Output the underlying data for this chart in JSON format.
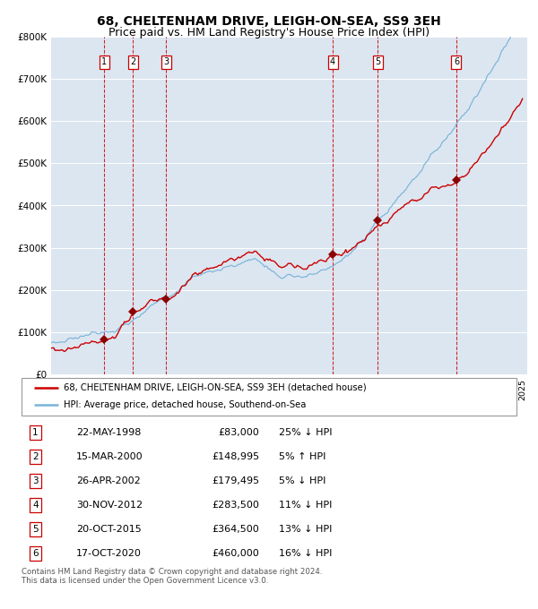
{
  "title": "68, CHELTENHAM DRIVE, LEIGH-ON-SEA, SS9 3EH",
  "subtitle": "Price paid vs. HM Land Registry's House Price Index (HPI)",
  "ylim": [
    0,
    800000
  ],
  "yticks": [
    0,
    100000,
    200000,
    300000,
    400000,
    500000,
    600000,
    700000,
    800000
  ],
  "ytick_labels": [
    "£0",
    "£100K",
    "£200K",
    "£300K",
    "£400K",
    "£500K",
    "£600K",
    "£700K",
    "£800K"
  ],
  "background_color": "#dce6f1",
  "hpi_color": "#7ab4d8",
  "price_color": "#cc0000",
  "sale_marker_color": "#8b0000",
  "vline_color": "#cc0000",
  "title_fontsize": 10,
  "subtitle_fontsize": 9,
  "sale_points": [
    {
      "label": 1,
      "year": 1998.38,
      "price": 83000
    },
    {
      "label": 2,
      "year": 2000.21,
      "price": 148995
    },
    {
      "label": 3,
      "year": 2002.32,
      "price": 179495
    },
    {
      "label": 4,
      "year": 2012.92,
      "price": 283500
    },
    {
      "label": 5,
      "year": 2015.79,
      "price": 364500
    },
    {
      "label": 6,
      "year": 2020.79,
      "price": 460000
    }
  ],
  "legend_entries": [
    "68, CHELTENHAM DRIVE, LEIGH-ON-SEA, SS9 3EH (detached house)",
    "HPI: Average price, detached house, Southend-on-Sea"
  ],
  "table_rows": [
    {
      "num": 1,
      "date": "22-MAY-1998",
      "price": "£83,000",
      "hpi": "25% ↓ HPI"
    },
    {
      "num": 2,
      "date": "15-MAR-2000",
      "price": "£148,995",
      "hpi": "5% ↑ HPI"
    },
    {
      "num": 3,
      "date": "26-APR-2002",
      "price": "£179,495",
      "hpi": "5% ↓ HPI"
    },
    {
      "num": 4,
      "date": "30-NOV-2012",
      "price": "£283,500",
      "hpi": "11% ↓ HPI"
    },
    {
      "num": 5,
      "date": "20-OCT-2015",
      "price": "£364,500",
      "hpi": "13% ↓ HPI"
    },
    {
      "num": 6,
      "date": "17-OCT-2020",
      "price": "£460,000",
      "hpi": "16% ↓ HPI"
    }
  ],
  "footer": "Contains HM Land Registry data © Crown copyright and database right 2024.\nThis data is licensed under the Open Government Licence v3.0."
}
